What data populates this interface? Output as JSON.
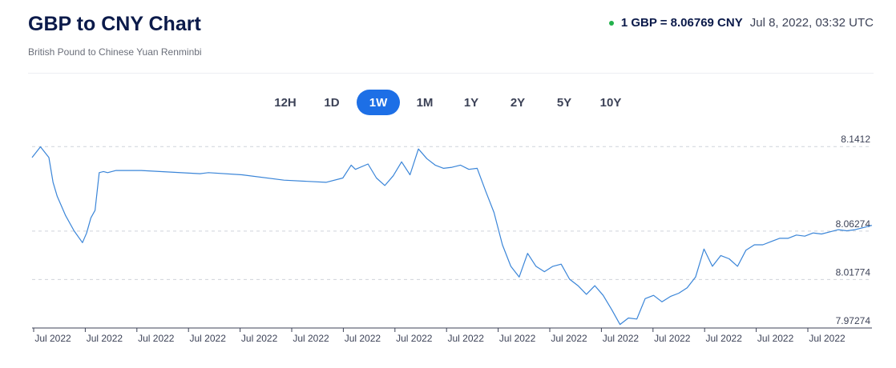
{
  "header": {
    "title": "GBP to CNY Chart",
    "subtitle": "British Pound to Chinese Yuan Renminbi",
    "rate_label": "1 GBP = 8.06769 CNY",
    "timestamp": "Jul 8, 2022, 03:32 UTC",
    "status_color": "#22b14c"
  },
  "ranges": [
    {
      "label": "12H",
      "active": false
    },
    {
      "label": "1D",
      "active": false
    },
    {
      "label": "1W",
      "active": true
    },
    {
      "label": "1M",
      "active": false
    },
    {
      "label": "1Y",
      "active": false
    },
    {
      "label": "2Y",
      "active": false
    },
    {
      "label": "5Y",
      "active": false
    },
    {
      "label": "10Y",
      "active": false
    }
  ],
  "colors": {
    "accent": "#1d6fe6",
    "line": "#3a85d8",
    "title": "#0b1a4a"
  },
  "chart_data": {
    "type": "line",
    "title": "",
    "xlabel": "",
    "ylabel": "",
    "ylim": [
      7.9727,
      8.1525
    ],
    "y_ticks": [
      "8.1412",
      "8.06274",
      "8.01774",
      "7.97274"
    ],
    "y_tick_values": [
      8.1412,
      8.0627,
      8.0177,
      7.9727
    ],
    "x_tick_labels": [
      "Jul 2022",
      "Jul 2022",
      "Jul 2022",
      "Jul 2022",
      "Jul 2022",
      "Jul 2022",
      "Jul 2022",
      "Jul 2022",
      "Jul 2022",
      "Jul 2022",
      "Jul 2022",
      "Jul 2022",
      "Jul 2022",
      "Jul 2022",
      "Jul 2022",
      "Jul 2022"
    ],
    "grid": true,
    "series": [
      {
        "x": [
          0,
          0.01,
          0.02,
          0.025,
          0.03,
          0.04,
          0.05,
          0.06,
          0.065,
          0.07,
          0.075,
          0.08,
          0.085,
          0.09,
          0.1,
          0.11,
          0.12,
          0.13,
          0.2,
          0.21,
          0.25,
          0.3,
          0.35,
          0.37,
          0.38,
          0.385,
          0.4,
          0.41,
          0.42,
          0.43,
          0.44,
          0.45,
          0.46,
          0.47,
          0.48,
          0.49,
          0.5,
          0.51,
          0.52,
          0.53,
          0.54,
          0.55,
          0.56,
          0.57,
          0.58,
          0.59,
          0.6,
          0.61,
          0.62,
          0.63,
          0.64,
          0.65,
          0.66,
          0.67,
          0.68,
          0.69,
          0.7,
          0.71,
          0.72,
          0.73,
          0.74,
          0.75,
          0.76,
          0.77,
          0.78,
          0.79,
          0.8,
          0.81,
          0.82,
          0.83,
          0.84,
          0.85,
          0.86,
          0.87,
          0.88,
          0.89,
          0.9,
          0.91,
          0.92,
          0.93,
          0.94,
          0.95,
          0.96,
          0.97,
          0.98,
          0.99,
          1.0
        ],
        "values": [
          8.131,
          8.141,
          8.131,
          8.108,
          8.095,
          8.077,
          8.063,
          8.052,
          8.061,
          8.075,
          8.082,
          8.117,
          8.118,
          8.117,
          8.119,
          8.119,
          8.119,
          8.119,
          8.116,
          8.117,
          8.115,
          8.11,
          8.108,
          8.112,
          8.124,
          8.12,
          8.125,
          8.112,
          8.105,
          8.114,
          8.127,
          8.115,
          8.139,
          8.13,
          8.124,
          8.121,
          8.122,
          8.124,
          8.12,
          8.121,
          8.1,
          8.08,
          8.05,
          8.03,
          8.02,
          8.042,
          8.03,
          8.025,
          8.03,
          8.032,
          8.018,
          8.012,
          8.004,
          8.012,
          8.003,
          7.99,
          7.976,
          7.982,
          7.981,
          8.0,
          8.003,
          7.997,
          8.002,
          8.005,
          8.01,
          8.02,
          8.046,
          8.03,
          8.04,
          8.037,
          8.03,
          8.045,
          8.05,
          8.05,
          8.053,
          8.056,
          8.056,
          8.059,
          8.058,
          8.061,
          8.06,
          8.062,
          8.064,
          8.063,
          8.064,
          8.066,
          8.068
        ]
      }
    ]
  }
}
